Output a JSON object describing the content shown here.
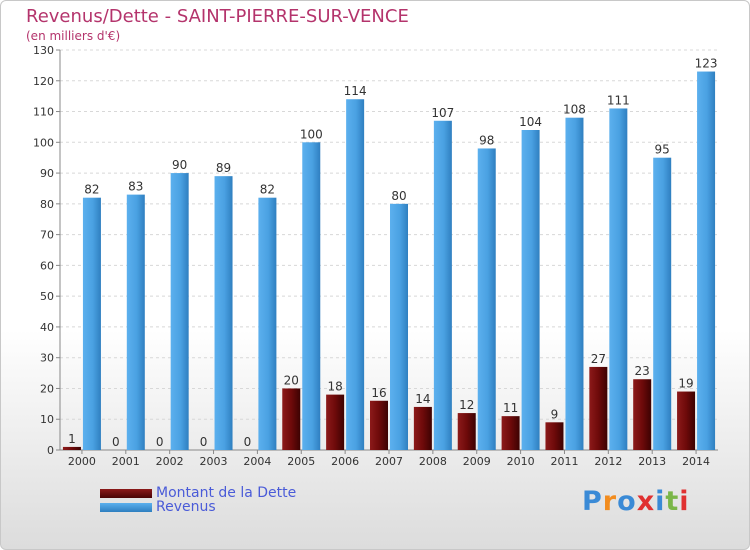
{
  "header": {
    "title": "Revenus/Dette - SAINT-PIERRE-SUR-VENCE",
    "subtitle": "(en milliers d'€)"
  },
  "chart_data": {
    "type": "bar",
    "categories": [
      "2000",
      "2001",
      "2002",
      "2003",
      "2004",
      "2005",
      "2006",
      "2007",
      "2008",
      "2009",
      "2010",
      "2011",
      "2012",
      "2013",
      "2014"
    ],
    "series": [
      {
        "name": "Montant de la Dette",
        "color": "#6e0a0a",
        "values": [
          1,
          0,
          0,
          0,
          0,
          20,
          18,
          16,
          14,
          12,
          11,
          9,
          27,
          23,
          19
        ]
      },
      {
        "name": "Revenus",
        "color": "#4aa1e2",
        "values": [
          82,
          83,
          90,
          89,
          82,
          100,
          114,
          80,
          107,
          98,
          104,
          108,
          111,
          95,
          123
        ]
      }
    ],
    "ylim": [
      0,
      130
    ],
    "yticks": [
      0,
      10,
      20,
      30,
      40,
      50,
      60,
      70,
      80,
      90,
      100,
      110,
      120,
      130
    ],
    "grid": true,
    "legend_position": "bottom-left"
  },
  "logo": {
    "text": "Proxiti",
    "letter_colors": [
      "#3a8ad6",
      "#f28c1e",
      "#3a8ad6",
      "#e03030",
      "#3a8ad6",
      "#7ab648",
      "#e03030"
    ]
  }
}
